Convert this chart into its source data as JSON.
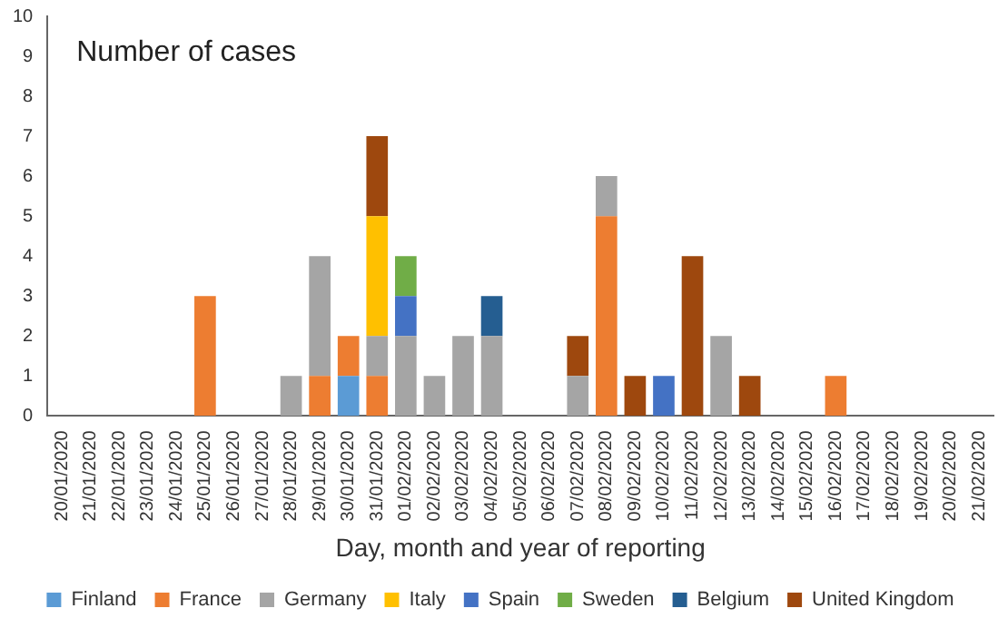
{
  "chart_data": {
    "type": "bar",
    "stacked": true,
    "title": "Number of cases",
    "xlabel": "Day, month and year of reporting",
    "categories": [
      "20/01/2020",
      "21/01/2020",
      "22/01/2020",
      "23/01/2020",
      "24/01/2020",
      "25/01/2020",
      "26/01/2020",
      "27/01/2020",
      "28/01/2020",
      "29/01/2020",
      "30/01/2020",
      "31/01/2020",
      "01/02/2020",
      "02/02/2020",
      "03/02/2020",
      "04/02/2020",
      "05/02/2020",
      "06/02/2020",
      "07/02/2020",
      "08/02/2020",
      "09/02/2020",
      "10/02/2020",
      "11/02/2020",
      "12/02/2020",
      "13/02/2020",
      "14/02/2020",
      "15/02/2020",
      "16/02/2020",
      "17/02/2020",
      "18/02/2020",
      "19/02/2020",
      "20/02/2020",
      "21/02/2020"
    ],
    "series": [
      {
        "name": "Finland",
        "color": "#5b9bd5",
        "values": [
          null,
          null,
          null,
          null,
          null,
          null,
          null,
          null,
          null,
          null,
          1,
          null,
          null,
          null,
          null,
          null,
          null,
          null,
          null,
          null,
          null,
          null,
          null,
          null,
          null,
          null,
          null,
          null,
          null,
          null,
          null,
          null,
          null
        ]
      },
      {
        "name": "France",
        "color": "#ed7d31",
        "values": [
          null,
          null,
          null,
          null,
          null,
          3,
          null,
          null,
          null,
          1,
          1,
          1,
          null,
          null,
          null,
          null,
          null,
          null,
          null,
          5,
          null,
          null,
          null,
          null,
          null,
          null,
          null,
          1,
          null,
          null,
          null,
          null,
          null
        ]
      },
      {
        "name": "Germany",
        "color": "#a5a5a5",
        "values": [
          null,
          null,
          null,
          null,
          null,
          null,
          null,
          null,
          1,
          3,
          null,
          1,
          2,
          1,
          2,
          2,
          null,
          null,
          1,
          1,
          null,
          null,
          null,
          2,
          null,
          null,
          null,
          null,
          null,
          null,
          null,
          null,
          null
        ]
      },
      {
        "name": "Italy",
        "color": "#ffc000",
        "values": [
          null,
          null,
          null,
          null,
          null,
          null,
          null,
          null,
          null,
          null,
          null,
          3,
          null,
          null,
          null,
          null,
          null,
          null,
          null,
          null,
          null,
          null,
          null,
          null,
          null,
          null,
          null,
          null,
          null,
          null,
          null,
          null,
          null
        ]
      },
      {
        "name": "Spain",
        "color": "#4472c4",
        "values": [
          null,
          null,
          null,
          null,
          null,
          null,
          null,
          null,
          null,
          null,
          null,
          null,
          1,
          null,
          null,
          null,
          null,
          null,
          null,
          null,
          null,
          1,
          null,
          null,
          null,
          null,
          null,
          null,
          null,
          null,
          null,
          null,
          null
        ]
      },
      {
        "name": "Sweden",
        "color": "#70ad47",
        "values": [
          null,
          null,
          null,
          null,
          null,
          null,
          null,
          null,
          null,
          null,
          null,
          null,
          1,
          null,
          null,
          null,
          null,
          null,
          null,
          null,
          null,
          null,
          null,
          null,
          null,
          null,
          null,
          null,
          null,
          null,
          null,
          null,
          null
        ]
      },
      {
        "name": "Belgium",
        "color": "#255e91",
        "values": [
          null,
          null,
          null,
          null,
          null,
          null,
          null,
          null,
          null,
          null,
          null,
          null,
          null,
          null,
          null,
          1,
          null,
          null,
          null,
          null,
          null,
          null,
          null,
          null,
          null,
          null,
          null,
          null,
          null,
          null,
          null,
          null,
          null
        ]
      },
      {
        "name": "United Kingdom",
        "color": "#9e480e",
        "values": [
          null,
          null,
          null,
          null,
          null,
          null,
          null,
          null,
          null,
          null,
          null,
          2,
          null,
          null,
          null,
          null,
          null,
          null,
          1,
          null,
          1,
          null,
          4,
          null,
          1,
          null,
          null,
          null,
          null,
          null,
          null,
          null,
          null
        ]
      }
    ],
    "ylim": [
      0,
      10
    ],
    "yticks": [
      0,
      1,
      2,
      3,
      4,
      5,
      6,
      7,
      8,
      9,
      10
    ],
    "grid": false,
    "legend": "bottom"
  }
}
